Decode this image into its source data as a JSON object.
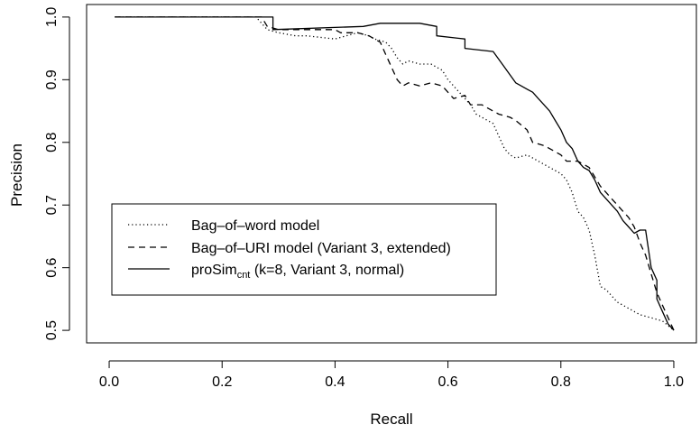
{
  "chart_data": {
    "type": "line",
    "title": "",
    "xlabel": "Recall",
    "ylabel": "Precision",
    "xlim": [
      -0.04,
      1.04
    ],
    "ylim": [
      0.48,
      1.02
    ],
    "xticks": [
      "0.0",
      "0.2",
      "0.4",
      "0.6",
      "0.8",
      "1.0"
    ],
    "yticks": [
      "0.5",
      "0.6",
      "0.7",
      "0.8",
      "0.9",
      "1.0"
    ],
    "grid": false,
    "legend_position": "bottom-left",
    "series": [
      {
        "name": "Bag–of–word model",
        "line_style": "dotted",
        "x": [
          0.01,
          0.26,
          0.27,
          0.28,
          0.3,
          0.33,
          0.35,
          0.4,
          0.42,
          0.44,
          0.46,
          0.47,
          0.49,
          0.5,
          0.51,
          0.52,
          0.53,
          0.55,
          0.57,
          0.59,
          0.6,
          0.61,
          0.62,
          0.63,
          0.64,
          0.65,
          0.66,
          0.68,
          0.69,
          0.7,
          0.71,
          0.72,
          0.74,
          0.75,
          0.77,
          0.79,
          0.8,
          0.81,
          0.82,
          0.83,
          0.84,
          0.85,
          0.86,
          0.87,
          0.88,
          0.9,
          0.92,
          0.94,
          0.96,
          0.98,
          1.0
        ],
        "y": [
          1.0,
          1.0,
          0.99,
          0.98,
          0.975,
          0.97,
          0.97,
          0.965,
          0.97,
          0.975,
          0.97,
          0.965,
          0.96,
          0.95,
          0.935,
          0.925,
          0.93,
          0.925,
          0.925,
          0.915,
          0.9,
          0.89,
          0.88,
          0.87,
          0.86,
          0.845,
          0.84,
          0.83,
          0.81,
          0.79,
          0.78,
          0.775,
          0.78,
          0.775,
          0.765,
          0.755,
          0.75,
          0.74,
          0.72,
          0.69,
          0.68,
          0.66,
          0.62,
          0.57,
          0.565,
          0.545,
          0.535,
          0.525,
          0.52,
          0.515,
          0.5
        ]
      },
      {
        "name": "Bag–of–URI model (Variant 3, extended)",
        "line_style": "dashed",
        "x": [
          0.01,
          0.27,
          0.28,
          0.3,
          0.33,
          0.36,
          0.4,
          0.41,
          0.44,
          0.46,
          0.48,
          0.49,
          0.5,
          0.51,
          0.52,
          0.53,
          0.55,
          0.57,
          0.59,
          0.61,
          0.63,
          0.64,
          0.66,
          0.68,
          0.69,
          0.71,
          0.72,
          0.74,
          0.75,
          0.77,
          0.78,
          0.8,
          0.81,
          0.83,
          0.85,
          0.86,
          0.87,
          0.88,
          0.89,
          0.9,
          0.91,
          0.92,
          0.93,
          0.94,
          0.95,
          0.96,
          0.97,
          0.98,
          0.99,
          1.0
        ],
        "y": [
          1.0,
          1.0,
          0.985,
          0.98,
          0.98,
          0.98,
          0.98,
          0.975,
          0.975,
          0.97,
          0.96,
          0.94,
          0.92,
          0.9,
          0.89,
          0.895,
          0.89,
          0.895,
          0.89,
          0.87,
          0.875,
          0.86,
          0.86,
          0.85,
          0.845,
          0.84,
          0.835,
          0.82,
          0.8,
          0.795,
          0.79,
          0.78,
          0.77,
          0.77,
          0.76,
          0.745,
          0.73,
          0.72,
          0.71,
          0.7,
          0.69,
          0.68,
          0.665,
          0.64,
          0.62,
          0.59,
          0.56,
          0.54,
          0.52,
          0.5
        ]
      },
      {
        "name": "proSim",
        "name_subscript": "cnt",
        "name_suffix": " (k=8, Variant 3, normal)",
        "line_style": "solid",
        "x": [
          0.01,
          0.29,
          0.29,
          0.45,
          0.48,
          0.55,
          0.58,
          0.58,
          0.63,
          0.63,
          0.68,
          0.7,
          0.72,
          0.73,
          0.74,
          0.75,
          0.76,
          0.77,
          0.78,
          0.79,
          0.8,
          0.81,
          0.82,
          0.83,
          0.84,
          0.85,
          0.86,
          0.87,
          0.88,
          0.89,
          0.9,
          0.91,
          0.92,
          0.93,
          0.94,
          0.95,
          0.96,
          0.97,
          0.97,
          0.98,
          0.99,
          1.0
        ],
        "y": [
          1.0,
          1.0,
          0.98,
          0.985,
          0.99,
          0.99,
          0.985,
          0.97,
          0.965,
          0.95,
          0.945,
          0.92,
          0.895,
          0.89,
          0.885,
          0.88,
          0.87,
          0.86,
          0.85,
          0.835,
          0.82,
          0.8,
          0.79,
          0.77,
          0.76,
          0.755,
          0.74,
          0.72,
          0.71,
          0.7,
          0.69,
          0.675,
          0.665,
          0.655,
          0.66,
          0.66,
          0.6,
          0.58,
          0.55,
          0.53,
          0.51,
          0.5
        ]
      }
    ]
  }
}
